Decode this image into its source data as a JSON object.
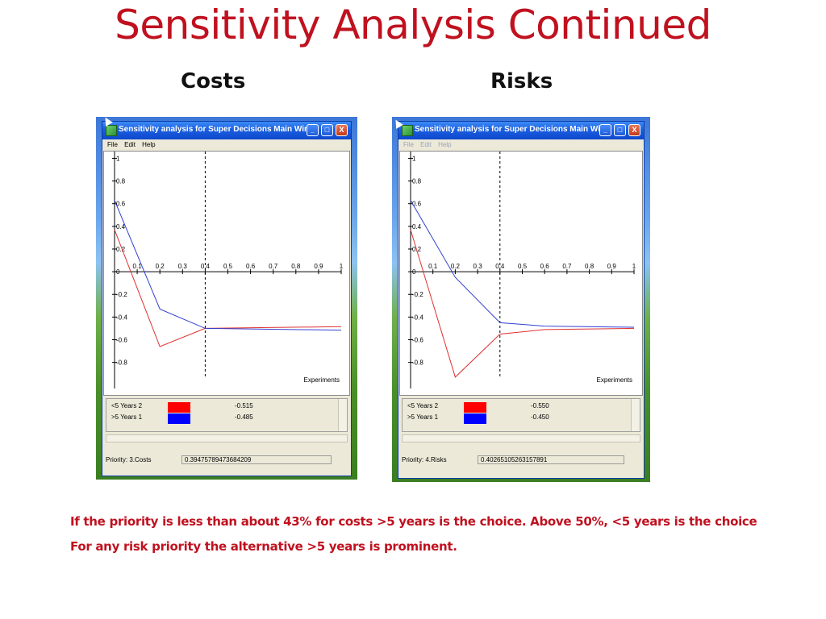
{
  "slide": {
    "title": "Sensitivity Analysis Continued",
    "headings": {
      "costs": "Costs",
      "risks": "Risks"
    },
    "notes": [
      "If the priority is less than about 43% for costs  >5 years is the choice. Above 50%, <5 years is the choice",
      "For any risk priority the alternative >5 years is prominent."
    ]
  },
  "windows": [
    {
      "title": "Sensitivity analysis for Super Decisions Main Win...",
      "menu": [
        "File",
        "Edit",
        "Help"
      ],
      "menu_enabled": true,
      "buttons": {
        "minimize": "_",
        "maximize": "□",
        "close": "X"
      },
      "chart_data": {
        "type": "line",
        "x_ticks": [
          "0.1",
          "0.2",
          "0.3",
          "0.4",
          "0.5",
          "0.6",
          "0.7",
          "0.8",
          "0.9",
          "1"
        ],
        "y_ticks": [
          "1",
          "0.8",
          "0.6",
          "0.4",
          "0.2",
          "0",
          "-0.2",
          "-0.4",
          "-0.6",
          "-0.8"
        ],
        "xlabel": "Experiments",
        "xlim": [
          0,
          1
        ],
        "ylim": [
          -1,
          1
        ],
        "dashed_x": 0.4,
        "series": [
          {
            "name": "<5 Years",
            "color": "#e03030",
            "points": [
              [
                0,
                0.37
              ],
              [
                0.2,
                -0.66
              ],
              [
                0.4,
                -0.5
              ],
              [
                1,
                -0.485
              ]
            ]
          },
          {
            "name": ">5 Years",
            "color": "#3040d0",
            "points": [
              [
                0,
                0.63
              ],
              [
                0.2,
                -0.33
              ],
              [
                0.4,
                -0.5
              ],
              [
                1,
                -0.515
              ]
            ]
          }
        ]
      },
      "legend": [
        {
          "label": "<5 Years  2",
          "color": "#ff0000",
          "value": "-0.515"
        },
        {
          "label": ">5 Years  1",
          "color": "#0000ff",
          "value": "-0.485"
        }
      ],
      "status": {
        "label": "Priority: 3.Costs",
        "value": "0.39475789473684209"
      }
    },
    {
      "title": "Sensitivity analysis for Super Decisions Main Win...",
      "menu": [
        "File",
        "Edit",
        "Help"
      ],
      "menu_enabled": false,
      "buttons": {
        "minimize": "_",
        "maximize": "□",
        "close": "X"
      },
      "chart_data": {
        "type": "line",
        "x_ticks": [
          "0.1",
          "0.2",
          "0.3",
          "0.4",
          "0.5",
          "0.6",
          "0.7",
          "0.8",
          "0.9",
          "1"
        ],
        "y_ticks": [
          "1",
          "0.8",
          "0.6",
          "0.4",
          "0.2",
          "0",
          "-0.2",
          "-0.4",
          "-0.6",
          "-0.8"
        ],
        "xlabel": "Experiments",
        "xlim": [
          0,
          1
        ],
        "ylim": [
          -1,
          1
        ],
        "dashed_x": 0.4,
        "series": [
          {
            "name": "<5 Years",
            "color": "#e03030",
            "points": [
              [
                0,
                0.37
              ],
              [
                0.2,
                -0.93
              ],
              [
                0.4,
                -0.55
              ],
              [
                0.6,
                -0.51
              ],
              [
                1,
                -0.5
              ]
            ]
          },
          {
            "name": ">5 Years",
            "color": "#3040d0",
            "points": [
              [
                0,
                0.63
              ],
              [
                0.2,
                -0.05
              ],
              [
                0.4,
                -0.45
              ],
              [
                0.6,
                -0.48
              ],
              [
                1,
                -0.49
              ]
            ]
          }
        ]
      },
      "legend": [
        {
          "label": "<5 Years  2",
          "color": "#ff0000",
          "value": "-0.550"
        },
        {
          "label": ">5 Years  1",
          "color": "#0000ff",
          "value": "-0.450"
        }
      ],
      "status": {
        "label": "Priority: 4.Risks",
        "value": "0.40265105263157891"
      }
    }
  ]
}
